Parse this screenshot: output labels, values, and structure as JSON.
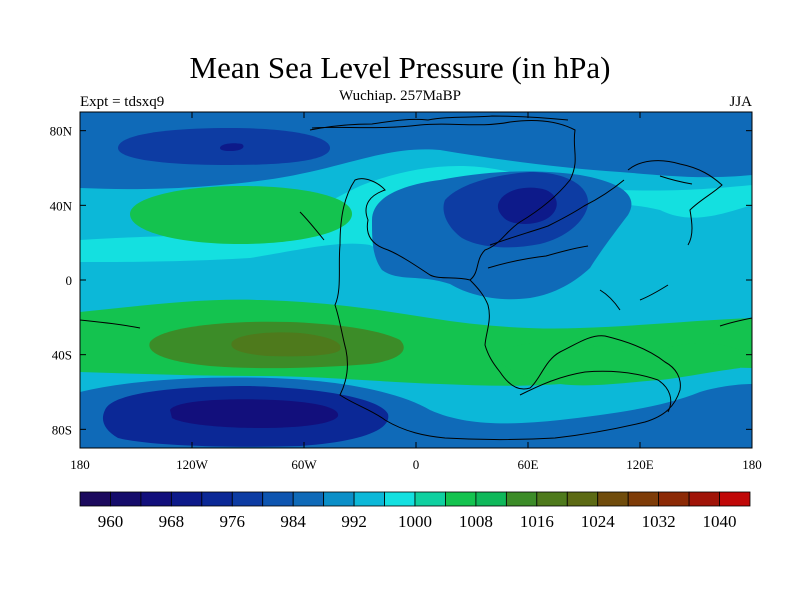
{
  "title": "Mean Sea Level Pressure (in hPa)",
  "subtitle": "Wuchiap. 257MaBP",
  "left_label": "Expt = tdsxq9",
  "right_label": "JJA",
  "colors": {
    "c956": "#1c0a5e",
    "c960": "#150c6b",
    "c964": "#120f7c",
    "c968": "#0d1a8a",
    "c972": "#0b2896",
    "c976": "#0d3ca3",
    "c980": "#0e55b0",
    "c984": "#0f6ab8",
    "c988": "#0b8fc8",
    "c992": "#0cb8d8",
    "c996": "#14e0e0",
    "c1000": "#0fd0a0",
    "c1004": "#14c34f",
    "c1008": "#0fb85a",
    "c1012": "#3c8c28",
    "c1016": "#4e7a1c",
    "c1020": "#5c6a14",
    "c1024": "#704c0c",
    "c1028": "#7e3c08",
    "c1032": "#8c2a06",
    "c1036": "#a01408",
    "c1040": "#c00808"
  },
  "chart_data": {
    "type": "heatmap",
    "title": "Mean Sea Level Pressure (in hPa)",
    "subtitle": "Wuchiap. 257MaBP",
    "x_ticks": [
      "180",
      "120W",
      "60W",
      "0",
      "60E",
      "120E",
      "180"
    ],
    "x_tick_values": [
      -180,
      -120,
      -60,
      0,
      60,
      120,
      180
    ],
    "y_ticks": [
      "80N",
      "40N",
      "0",
      "40S",
      "80S"
    ],
    "y_tick_values": [
      80,
      40,
      0,
      -40,
      -80
    ],
    "xlim": [
      -180,
      180
    ],
    "ylim": [
      -90,
      90
    ],
    "colorbar_labels": [
      "960",
      "968",
      "976",
      "984",
      "992",
      "1000",
      "1008",
      "1016",
      "1024",
      "1032",
      "1040"
    ],
    "colorbar_label_values": [
      960,
      968,
      976,
      984,
      992,
      1000,
      1008,
      1016,
      1024,
      1032,
      1040
    ],
    "colorbar_bins": [
      956,
      960,
      964,
      968,
      972,
      976,
      980,
      984,
      988,
      992,
      996,
      1000,
      1004,
      1008,
      1012,
      1016,
      1020,
      1024,
      1028,
      1032,
      1036,
      1040
    ],
    "field_regions": [
      {
        "name": "background",
        "value": 992
      },
      {
        "name": "north-band",
        "value": 984
      },
      {
        "name": "north-pacific-low",
        "value": 976
      },
      {
        "name": "north-pacific-low-core",
        "value": 968
      },
      {
        "name": "mid-north-ridge",
        "value": 996
      },
      {
        "name": "subtropical-high-north",
        "value": 1004
      },
      {
        "name": "central-asian-low",
        "value": 984
      },
      {
        "name": "central-asian-low-inner",
        "value": 976
      },
      {
        "name": "central-asian-low-core",
        "value": 968
      },
      {
        "name": "subtropical-high-south-1",
        "value": 1004
      },
      {
        "name": "subtropical-high-south-2",
        "value": 1012
      },
      {
        "name": "subtropical-high-south-core",
        "value": 1016
      },
      {
        "name": "southern-ocean-low",
        "value": 984
      },
      {
        "name": "southern-ocean-low-inner",
        "value": 972
      },
      {
        "name": "southern-ocean-low-core",
        "value": 964
      },
      {
        "name": "east-south-ridge",
        "value": 1004
      }
    ]
  }
}
